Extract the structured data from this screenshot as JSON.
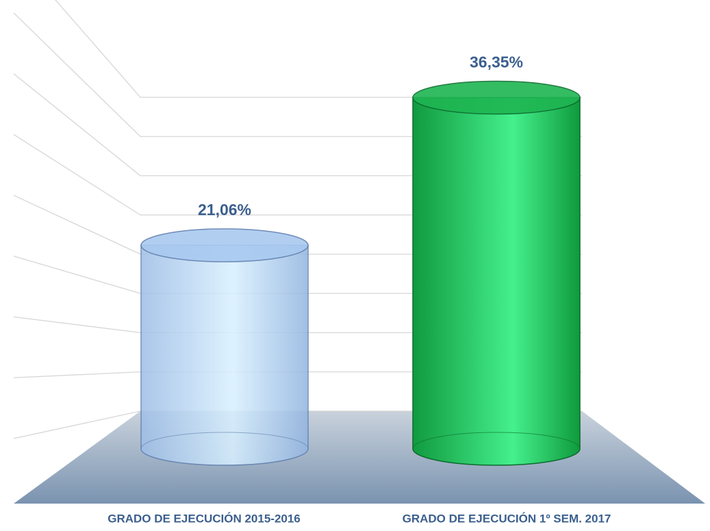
{
  "chart_data": {
    "type": "cylinder",
    "categories": [
      "GRADO DE EJECUCIÓN 2015-2016",
      "GRADO DE EJECUCIÓN 1º SEM. 2017"
    ],
    "values": [
      21.06,
      36.35
    ],
    "value_labels": [
      "21,06%",
      "36,35%"
    ],
    "colors": [
      "#a9c9f0",
      "#1eb552"
    ],
    "ylim": [
      0,
      40
    ],
    "yticks": [
      0,
      5,
      10,
      15,
      20,
      25,
      30,
      35,
      40
    ],
    "grid": true
  }
}
